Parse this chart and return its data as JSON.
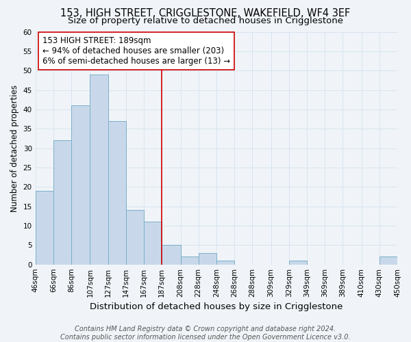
{
  "title": "153, HIGH STREET, CRIGGLESTONE, WAKEFIELD, WF4 3EF",
  "subtitle": "Size of property relative to detached houses in Crigglestone",
  "xlabel": "Distribution of detached houses by size in Crigglestone",
  "ylabel": "Number of detached properties",
  "bar_edges": [
    46,
    66,
    86,
    107,
    127,
    147,
    167,
    187,
    208,
    228,
    248,
    268,
    288,
    309,
    329,
    349,
    369,
    389,
    410,
    430,
    450
  ],
  "bar_heights": [
    19,
    32,
    41,
    49,
    37,
    14,
    11,
    5,
    2,
    3,
    1,
    0,
    0,
    0,
    1,
    0,
    0,
    0,
    0,
    2
  ],
  "bar_color": "#c8d8ea",
  "bar_edge_color": "#7aafc8",
  "vline_x": 187,
  "vline_color": "#cc0000",
  "annotation_line1": "153 HIGH STREET: 189sqm",
  "annotation_line2": "← 94% of detached houses are smaller (203)",
  "annotation_line3": "6% of semi-detached houses are larger (13) →",
  "ylim": [
    0,
    60
  ],
  "yticks": [
    0,
    5,
    10,
    15,
    20,
    25,
    30,
    35,
    40,
    45,
    50,
    55,
    60
  ],
  "tick_labels": [
    "46sqm",
    "66sqm",
    "86sqm",
    "107sqm",
    "127sqm",
    "147sqm",
    "167sqm",
    "187sqm",
    "208sqm",
    "228sqm",
    "248sqm",
    "268sqm",
    "288sqm",
    "309sqm",
    "329sqm",
    "349sqm",
    "369sqm",
    "389sqm",
    "410sqm",
    "430sqm",
    "450sqm"
  ],
  "footnote_line1": "Contains HM Land Registry data © Crown copyright and database right 2024.",
  "footnote_line2": "Contains public sector information licensed under the Open Government Licence v3.0.",
  "grid_color": "#d8e4f0",
  "background_color": "#f0f4f8",
  "title_fontsize": 10.5,
  "subtitle_fontsize": 9.5,
  "xlabel_fontsize": 9.5,
  "ylabel_fontsize": 8.5,
  "annotation_fontsize": 8.5,
  "tick_fontsize": 7.5,
  "footnote_fontsize": 7
}
